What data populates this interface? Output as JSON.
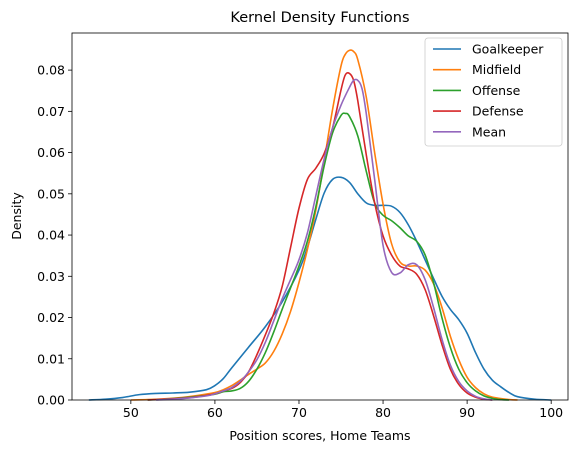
{
  "chart_data": {
    "type": "line",
    "title": "Kernel Density Functions",
    "xlabel": "Position scores, Home Teams",
    "ylabel": "Density",
    "xlim": [
      43,
      102
    ],
    "ylim": [
      0,
      0.089
    ],
    "xticks": [
      50,
      60,
      70,
      80,
      90,
      100
    ],
    "yticks": [
      0.0,
      0.01,
      0.02,
      0.03,
      0.04,
      0.05,
      0.06,
      0.07,
      0.08
    ],
    "ytick_labels": [
      "0.00",
      "0.01",
      "0.02",
      "0.03",
      "0.04",
      "0.05",
      "0.06",
      "0.07",
      "0.08"
    ],
    "grid": false,
    "legend_position": "top-right",
    "series": [
      {
        "name": "Goalkeeper",
        "color": "#1f77b4",
        "points": [
          [
            45,
            0.0
          ],
          [
            47,
            0.0002
          ],
          [
            49,
            0.0006
          ],
          [
            51,
            0.0013
          ],
          [
            53,
            0.0016
          ],
          [
            55,
            0.0017
          ],
          [
            57,
            0.0019
          ],
          [
            59,
            0.0025
          ],
          [
            60,
            0.0035
          ],
          [
            61,
            0.0052
          ],
          [
            62,
            0.0078
          ],
          [
            64,
            0.0128
          ],
          [
            66,
            0.0178
          ],
          [
            68,
            0.0238
          ],
          [
            70,
            0.0315
          ],
          [
            71,
            0.037
          ],
          [
            72,
            0.0438
          ],
          [
            73,
            0.0502
          ],
          [
            74,
            0.0535
          ],
          [
            75,
            0.054
          ],
          [
            76,
            0.0528
          ],
          [
            77,
            0.05
          ],
          [
            78,
            0.0478
          ],
          [
            79,
            0.0472
          ],
          [
            80,
            0.0472
          ],
          [
            81,
            0.047
          ],
          [
            82,
            0.0455
          ],
          [
            83,
            0.0425
          ],
          [
            84,
            0.0385
          ],
          [
            85,
            0.034
          ],
          [
            86,
            0.0295
          ],
          [
            87,
            0.0252
          ],
          [
            88,
            0.022
          ],
          [
            89,
            0.0195
          ],
          [
            90,
            0.0162
          ],
          [
            91,
            0.0115
          ],
          [
            92,
            0.0075
          ],
          [
            93,
            0.0048
          ],
          [
            94,
            0.0032
          ],
          [
            95,
            0.0018
          ],
          [
            96,
            0.0008
          ],
          [
            98,
            0.0002
          ],
          [
            100,
            0.0
          ]
        ]
      },
      {
        "name": "Midfield",
        "color": "#ff7f0e",
        "points": [
          [
            50,
            0.0
          ],
          [
            52,
            0.0001
          ],
          [
            54,
            0.0003
          ],
          [
            56,
            0.0006
          ],
          [
            58,
            0.0011
          ],
          [
            60,
            0.0018
          ],
          [
            61,
            0.0025
          ],
          [
            62,
            0.0035
          ],
          [
            63,
            0.0048
          ],
          [
            64,
            0.0062
          ],
          [
            65,
            0.0075
          ],
          [
            66,
            0.009
          ],
          [
            67,
            0.0118
          ],
          [
            68,
            0.016
          ],
          [
            69,
            0.0215
          ],
          [
            70,
            0.0285
          ],
          [
            71,
            0.0365
          ],
          [
            72,
            0.046
          ],
          [
            73,
            0.058
          ],
          [
            74,
            0.0705
          ],
          [
            75,
            0.081
          ],
          [
            75.5,
            0.0838
          ],
          [
            76,
            0.0848
          ],
          [
            76.5,
            0.0845
          ],
          [
            77,
            0.0825
          ],
          [
            78,
            0.0735
          ],
          [
            79,
            0.06
          ],
          [
            80,
            0.0475
          ],
          [
            81,
            0.038
          ],
          [
            82,
            0.0335
          ],
          [
            83,
            0.0325
          ],
          [
            84,
            0.0325
          ],
          [
            85,
            0.0315
          ],
          [
            86,
            0.0282
          ],
          [
            87,
            0.0225
          ],
          [
            88,
            0.0155
          ],
          [
            89,
            0.0098
          ],
          [
            90,
            0.0055
          ],
          [
            91,
            0.003
          ],
          [
            92,
            0.0015
          ],
          [
            93,
            0.0007
          ],
          [
            95,
            0.0001
          ],
          [
            96,
            0.0
          ]
        ]
      },
      {
        "name": "Offense",
        "color": "#2ca02c",
        "points": [
          [
            52,
            0.0
          ],
          [
            54,
            0.0002
          ],
          [
            56,
            0.0005
          ],
          [
            58,
            0.0009
          ],
          [
            60,
            0.0014
          ],
          [
            61,
            0.002
          ],
          [
            62,
            0.0022
          ],
          [
            63,
            0.0028
          ],
          [
            64,
            0.0045
          ],
          [
            65,
            0.0075
          ],
          [
            66,
            0.0115
          ],
          [
            67,
            0.0165
          ],
          [
            68,
            0.022
          ],
          [
            69,
            0.0272
          ],
          [
            70,
            0.0325
          ],
          [
            71,
            0.0385
          ],
          [
            72,
            0.0468
          ],
          [
            73,
            0.0568
          ],
          [
            74,
            0.0648
          ],
          [
            75,
            0.069
          ],
          [
            75.5,
            0.0695
          ],
          [
            76,
            0.0688
          ],
          [
            77,
            0.064
          ],
          [
            78,
            0.0555
          ],
          [
            79,
            0.0478
          ],
          [
            80,
            0.0448
          ],
          [
            81,
            0.0435
          ],
          [
            82,
            0.0418
          ],
          [
            83,
            0.0398
          ],
          [
            84,
            0.0385
          ],
          [
            85,
            0.0352
          ],
          [
            86,
            0.0285
          ],
          [
            87,
            0.02
          ],
          [
            88,
            0.0128
          ],
          [
            89,
            0.0075
          ],
          [
            90,
            0.0042
          ],
          [
            91,
            0.0022
          ],
          [
            92,
            0.001
          ],
          [
            93,
            0.0004
          ],
          [
            94,
            0.0001
          ],
          [
            95,
            0.0
          ]
        ]
      },
      {
        "name": "Defense",
        "color": "#d62728",
        "points": [
          [
            52,
            0.0
          ],
          [
            54,
            0.0002
          ],
          [
            56,
            0.0004
          ],
          [
            58,
            0.0008
          ],
          [
            60,
            0.0015
          ],
          [
            61,
            0.0022
          ],
          [
            62,
            0.0028
          ],
          [
            63,
            0.0042
          ],
          [
            64,
            0.0068
          ],
          [
            65,
            0.011
          ],
          [
            66,
            0.0158
          ],
          [
            67,
            0.021
          ],
          [
            68,
            0.0275
          ],
          [
            69,
            0.037
          ],
          [
            70,
            0.0465
          ],
          [
            71,
            0.0535
          ],
          [
            72,
            0.0562
          ],
          [
            73,
            0.0598
          ],
          [
            74,
            0.066
          ],
          [
            75,
            0.0752
          ],
          [
            75.5,
            0.0788
          ],
          [
            76,
            0.0792
          ],
          [
            76.5,
            0.0775
          ],
          [
            77,
            0.0725
          ],
          [
            78,
            0.0595
          ],
          [
            79,
            0.0478
          ],
          [
            80,
            0.0398
          ],
          [
            81,
            0.0352
          ],
          [
            82,
            0.0325
          ],
          [
            83,
            0.0318
          ],
          [
            84,
            0.0305
          ],
          [
            85,
            0.0268
          ],
          [
            86,
            0.0205
          ],
          [
            87,
            0.0135
          ],
          [
            88,
            0.0075
          ],
          [
            89,
            0.0038
          ],
          [
            90,
            0.0017
          ],
          [
            91,
            0.0007
          ],
          [
            92,
            0.0002
          ],
          [
            93,
            0.0
          ]
        ]
      },
      {
        "name": "Mean",
        "color": "#9467bd",
        "points": [
          [
            53,
            0.0
          ],
          [
            55,
            0.0002
          ],
          [
            57,
            0.0005
          ],
          [
            59,
            0.001
          ],
          [
            60,
            0.0015
          ],
          [
            61,
            0.0022
          ],
          [
            62,
            0.003
          ],
          [
            63,
            0.0045
          ],
          [
            64,
            0.0068
          ],
          [
            65,
            0.0098
          ],
          [
            66,
            0.014
          ],
          [
            67,
            0.0192
          ],
          [
            68,
            0.0245
          ],
          [
            69,
            0.0292
          ],
          [
            70,
            0.034
          ],
          [
            71,
            0.0405
          ],
          [
            72,
            0.0495
          ],
          [
            73,
            0.0585
          ],
          [
            74,
            0.066
          ],
          [
            75,
            0.0715
          ],
          [
            76,
            0.0758
          ],
          [
            76.5,
            0.0775
          ],
          [
            77,
            0.0775
          ],
          [
            77.5,
            0.0755
          ],
          [
            78,
            0.0695
          ],
          [
            79,
            0.0535
          ],
          [
            80,
            0.0375
          ],
          [
            81,
            0.031
          ],
          [
            82,
            0.0308
          ],
          [
            83,
            0.0328
          ],
          [
            84,
            0.0328
          ],
          [
            85,
            0.0292
          ],
          [
            86,
            0.0225
          ],
          [
            87,
            0.0148
          ],
          [
            88,
            0.0085
          ],
          [
            89,
            0.0045
          ],
          [
            90,
            0.0022
          ],
          [
            91,
            0.0009
          ],
          [
            92,
            0.0003
          ],
          [
            93,
            0.0
          ]
        ]
      }
    ]
  }
}
